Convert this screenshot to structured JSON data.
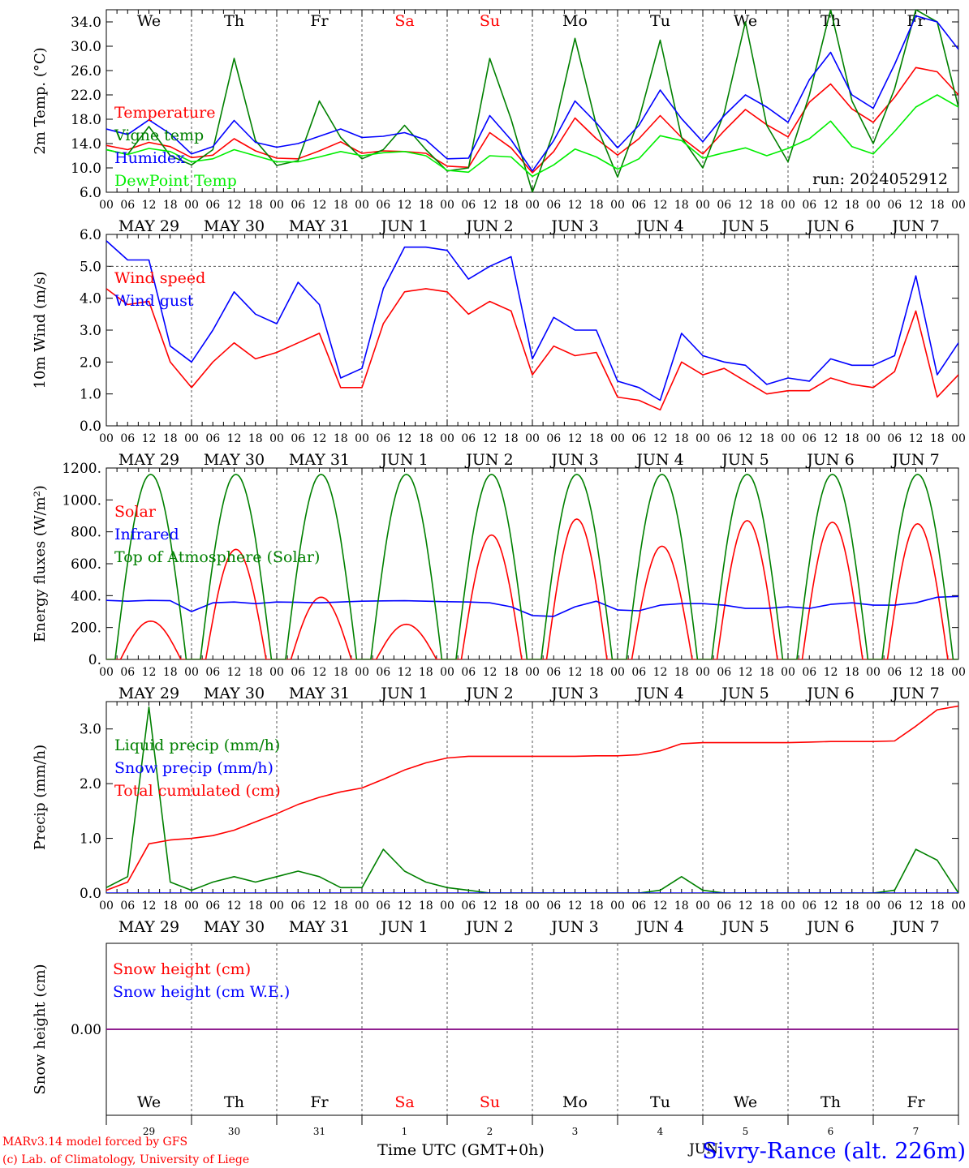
{
  "run_label": "run: 2024052912",
  "weekdays": [
    {
      "label": "We",
      "color": "#000000"
    },
    {
      "label": "Th",
      "color": "#000000"
    },
    {
      "label": "Fr",
      "color": "#000000"
    },
    {
      "label": "Sa",
      "color": "#ff0000"
    },
    {
      "label": "Su",
      "color": "#ff0000"
    },
    {
      "label": "Mo",
      "color": "#000000"
    },
    {
      "label": "Tu",
      "color": "#000000"
    },
    {
      "label": "We",
      "color": "#000000"
    },
    {
      "label": "Th",
      "color": "#000000"
    },
    {
      "label": "Fr",
      "color": "#000000"
    }
  ],
  "date_labels": [
    "MAY 29",
    "MAY 30",
    "MAY 31",
    "JUN  1",
    "JUN  2",
    "JUN  3",
    "JUN  4",
    "JUN  5",
    "JUN  6",
    "JUN  7"
  ],
  "hour_labels": [
    "00",
    "06",
    "12",
    "18"
  ],
  "final_hour_label": "00",
  "day_numbers": [
    "29",
    "30",
    "31",
    "1",
    "2",
    "3",
    "4",
    "5",
    "6",
    "7"
  ],
  "month_label": "JUN",
  "x_axis_title": "Time UTC (GMT+0h)",
  "credit_lines": [
    "MARv3.14 model forced by GFS",
    "(c) Lab. of Climatology, University of Liege"
  ],
  "station_label": "Sivry-Rance (alt. 226m)",
  "colors": {
    "red": "#ff0000",
    "blue": "#0000ff",
    "green": "#008000",
    "lightgreen": "#00ee00",
    "purple": "#800080",
    "text_blue": "#0000ff"
  },
  "chart_data": [
    {
      "type": "line",
      "ylabel": "2m Temp. (°C)",
      "ylim": [
        6,
        36
      ],
      "ytick_labels": [
        "6.0",
        "10.0",
        "14.0",
        "18.0",
        "22.0",
        "26.0",
        "30.0",
        "34.0"
      ],
      "x_hours": [
        0,
        6,
        12,
        18,
        24,
        30,
        36,
        42,
        48,
        54,
        60,
        66,
        72,
        78,
        84,
        90,
        96,
        102,
        108,
        114,
        120,
        126,
        132,
        138,
        144,
        150,
        156,
        162,
        168,
        174,
        180,
        186,
        192,
        198,
        204,
        210,
        216,
        222,
        228,
        234,
        240
      ],
      "series": [
        {
          "name": "Temperature",
          "color": "#ff0000",
          "values": [
            13.7,
            13.0,
            14.2,
            13.5,
            11.7,
            12.1,
            14.8,
            12.8,
            11.6,
            11.5,
            12.8,
            14.3,
            12.4,
            12.8,
            12.7,
            12.4,
            10.3,
            10.1,
            15.8,
            13.3,
            9.2,
            12.7,
            18.2,
            14.8,
            12.1,
            14.8,
            18.6,
            15.0,
            12.3,
            16.1,
            19.6,
            17.1,
            15.1,
            20.8,
            23.8,
            19.7,
            17.5,
            21.6,
            26.5,
            25.8,
            22.0
          ]
        },
        {
          "name": "Vigne temp",
          "color": "#008000",
          "values": [
            13.0,
            12.2,
            16.8,
            12.0,
            10.5,
            13.0,
            28.0,
            14.5,
            10.4,
            11.2,
            21.0,
            15.0,
            11.5,
            13.0,
            17.0,
            13.0,
            9.5,
            10.0,
            28.0,
            18.0,
            6.0,
            16.0,
            31.3,
            17.0,
            8.5,
            18.0,
            31.0,
            15.0,
            10.0,
            19.0,
            34.0,
            17.0,
            11.0,
            22.0,
            36.0,
            21.0,
            14.0,
            23.0,
            36.0,
            34.0,
            20.0
          ]
        },
        {
          "name": "Humidex",
          "color": "#0000ff",
          "values": [
            16.4,
            15.5,
            17.9,
            15.6,
            12.3,
            13.5,
            17.8,
            14.2,
            13.4,
            14.0,
            15.2,
            16.4,
            15.0,
            15.2,
            15.8,
            14.6,
            11.5,
            11.6,
            18.6,
            14.6,
            9.5,
            14.5,
            21.0,
            17.4,
            13.3,
            17.0,
            22.8,
            18.1,
            14.3,
            18.6,
            22.0,
            20.0,
            17.5,
            24.5,
            29.0,
            22.0,
            19.8,
            27.0,
            35.0,
            34.0,
            29.5
          ]
        },
        {
          "name": "DewPoint Temp",
          "color": "#00ee00",
          "values": [
            13.0,
            12.2,
            13.2,
            12.7,
            11.0,
            11.5,
            13.0,
            12.0,
            11.0,
            11.0,
            11.8,
            12.7,
            12.0,
            12.5,
            12.7,
            12.0,
            9.6,
            9.3,
            12.0,
            11.8,
            8.6,
            10.5,
            13.1,
            11.8,
            9.8,
            11.5,
            15.3,
            14.5,
            11.6,
            12.5,
            13.3,
            12.0,
            13.2,
            14.8,
            17.7,
            13.5,
            12.3,
            16.0,
            20.0,
            22.0,
            20.0
          ]
        }
      ]
    },
    {
      "type": "line",
      "ylabel": "10m Wind (m/s)",
      "ylim": [
        0,
        6
      ],
      "ytick_labels": [
        "0.0",
        "1.0",
        "2.0",
        "3.0",
        "4.0",
        "5.0",
        "6.0"
      ],
      "x_hours": [
        0,
        6,
        12,
        18,
        24,
        30,
        36,
        42,
        48,
        54,
        60,
        66,
        72,
        78,
        84,
        90,
        96,
        102,
        108,
        114,
        120,
        126,
        132,
        138,
        144,
        150,
        156,
        162,
        168,
        174,
        180,
        186,
        192,
        198,
        204,
        210,
        216,
        222,
        228,
        234,
        240
      ],
      "series": [
        {
          "name": "Wind speed",
          "color": "#ff0000",
          "values": [
            4.3,
            3.8,
            3.9,
            2.0,
            1.2,
            2.0,
            2.6,
            2.1,
            2.3,
            2.6,
            2.9,
            1.2,
            1.2,
            3.2,
            4.2,
            4.3,
            4.2,
            3.5,
            3.9,
            3.6,
            1.6,
            2.5,
            2.2,
            2.3,
            0.9,
            0.8,
            0.5,
            2.0,
            1.6,
            1.8,
            1.4,
            1.0,
            1.1,
            1.1,
            1.5,
            1.3,
            1.2,
            1.7,
            3.6,
            0.9,
            1.6
          ]
        },
        {
          "name": "Wind gust",
          "color": "#0000ff",
          "values": [
            5.8,
            5.2,
            5.2,
            2.5,
            2.0,
            3.0,
            4.2,
            3.5,
            3.2,
            4.5,
            3.8,
            1.5,
            1.8,
            4.3,
            5.6,
            5.6,
            5.5,
            4.6,
            5.0,
            5.3,
            2.1,
            3.4,
            3.0,
            3.0,
            1.4,
            1.2,
            0.8,
            2.9,
            2.2,
            2.0,
            1.9,
            1.3,
            1.5,
            1.4,
            2.1,
            1.9,
            1.9,
            2.2,
            4.7,
            1.6,
            2.6
          ]
        }
      ]
    },
    {
      "type": "line",
      "ylabel": "Energy fluxes (W/m²)",
      "ylim": [
        0,
        1200
      ],
      "ytick_labels": [
        "0.",
        "200.",
        "400.",
        "600.",
        "800.",
        "1000.",
        "1200."
      ],
      "x_hours": [
        0,
        6,
        12,
        18,
        24,
        30,
        36,
        42,
        48,
        54,
        60,
        66,
        72,
        78,
        84,
        90,
        96,
        102,
        108,
        114,
        120,
        126,
        132,
        138,
        144,
        150,
        156,
        162,
        168,
        174,
        180,
        186,
        192,
        198,
        204,
        210,
        216,
        222,
        228,
        234,
        240
      ],
      "daily_peak_hour": 12.5,
      "daylight_half_width_hours": 8.5,
      "toa_daily_peak": 1160,
      "solar_daily_peaks": [
        240,
        690,
        390,
        220,
        780,
        880,
        710,
        870,
        860,
        850
      ],
      "series": [
        {
          "name": "Solar",
          "color": "#ff0000",
          "values": []
        },
        {
          "name": "Infrared",
          "color": "#0000ff",
          "values": [
            370,
            365,
            370,
            368,
            300,
            355,
            360,
            350,
            360,
            358,
            355,
            360,
            365,
            367,
            368,
            365,
            362,
            360,
            355,
            330,
            275,
            270,
            330,
            365,
            310,
            305,
            340,
            350,
            350,
            340,
            320,
            320,
            330,
            320,
            345,
            355,
            340,
            340,
            355,
            390,
            395
          ]
        },
        {
          "name": "Top of Atmosphere (Solar)",
          "color": "#008000",
          "values": []
        }
      ]
    },
    {
      "type": "line",
      "ylabel": "Precip (mm/h)",
      "ylim": [
        0,
        3.5
      ],
      "ytick_labels": [
        "0.0",
        "1.0",
        "2.0",
        "3.0"
      ],
      "x_hours": [
        0,
        6,
        12,
        18,
        24,
        30,
        36,
        42,
        48,
        54,
        60,
        66,
        72,
        78,
        84,
        90,
        96,
        102,
        108,
        114,
        120,
        126,
        132,
        138,
        144,
        150,
        156,
        162,
        168,
        174,
        180,
        186,
        192,
        198,
        204,
        210,
        216,
        222,
        228,
        234,
        240
      ],
      "series": [
        {
          "name": "Liquid precip (mm/h)",
          "color": "#008000",
          "values": [
            0.1,
            0.3,
            3.4,
            0.2,
            0.05,
            0.2,
            0.3,
            0.2,
            0.3,
            0.4,
            0.3,
            0.1,
            0.1,
            0.8,
            0.4,
            0.2,
            0.1,
            0.05,
            0.0,
            0.0,
            0.0,
            0.0,
            0.0,
            0.0,
            0.0,
            0.0,
            0.05,
            0.3,
            0.05,
            0.0,
            0.0,
            0.0,
            0.0,
            0.0,
            0.0,
            0.0,
            0.0,
            0.05,
            0.8,
            0.6,
            0.0
          ]
        },
        {
          "name": "Snow precip (mm/h)",
          "color": "#0000ff",
          "values": [
            0,
            0,
            0,
            0,
            0,
            0,
            0,
            0,
            0,
            0,
            0,
            0,
            0,
            0,
            0,
            0,
            0,
            0,
            0,
            0,
            0,
            0,
            0,
            0,
            0,
            0,
            0,
            0,
            0,
            0,
            0,
            0,
            0,
            0,
            0,
            0,
            0,
            0,
            0,
            0,
            0
          ]
        },
        {
          "name": "Total cumulated (cm)",
          "color": "#ff0000",
          "values": [
            0.05,
            0.2,
            0.9,
            0.97,
            1.0,
            1.05,
            1.15,
            1.3,
            1.45,
            1.62,
            1.75,
            1.85,
            1.92,
            2.08,
            2.25,
            2.38,
            2.47,
            2.5,
            2.5,
            2.5,
            2.5,
            2.5,
            2.5,
            2.51,
            2.51,
            2.53,
            2.6,
            2.73,
            2.75,
            2.75,
            2.75,
            2.75,
            2.75,
            2.76,
            2.77,
            2.77,
            2.77,
            2.78,
            3.05,
            3.35,
            3.42
          ]
        }
      ]
    },
    {
      "type": "line",
      "ylabel": "Snow height (cm)",
      "ylim": [
        -1,
        1
      ],
      "ytick_labels": [
        "0.00"
      ],
      "x_hours": [
        0,
        240
      ],
      "series": [
        {
          "name": "Snow height (cm)",
          "color": "#ff0000",
          "values": [
            0,
            0
          ]
        },
        {
          "name": "Snow height (cm W.E.)",
          "color": "#0000ff",
          "values": [
            0,
            0
          ]
        }
      ]
    }
  ]
}
